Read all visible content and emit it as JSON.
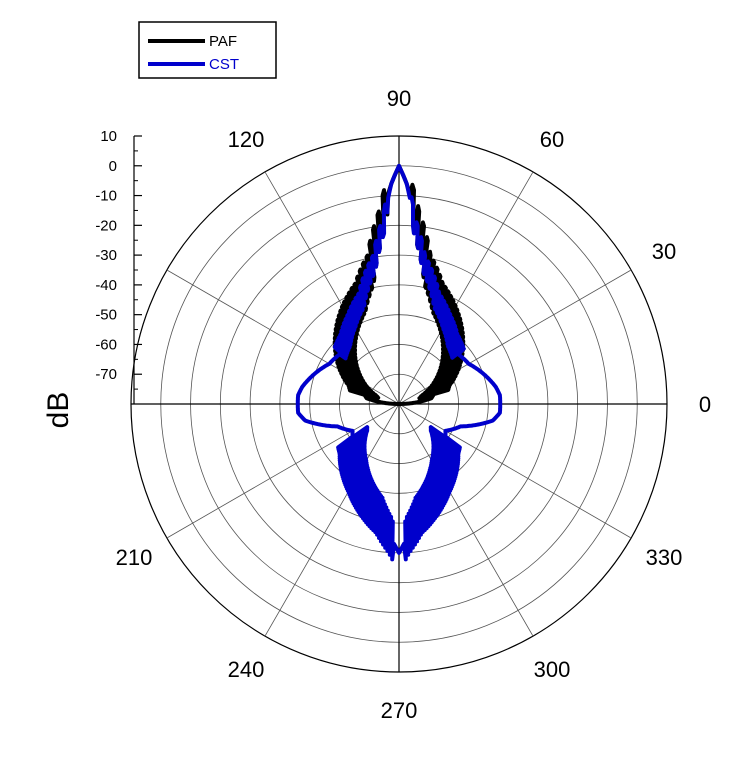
{
  "chart_data": {
    "type": "polar",
    "title": "",
    "radial_label": "dB",
    "radial_range": [
      -80,
      10
    ],
    "radial_ticks": [
      "10",
      "0",
      "-10",
      "-20",
      "-30",
      "-40",
      "-50",
      "-60",
      "-70"
    ],
    "angle_labels": [
      "0",
      "30",
      "60",
      "90",
      "120",
      "210",
      "240",
      "270",
      "300",
      "330"
    ],
    "legend": {
      "placement": "top-left"
    },
    "series": [
      {
        "name": "PAF",
        "color": "#000000",
        "points": [
          {
            "angle": 0,
            "db": -80
          },
          {
            "angle": 10,
            "db": -69
          },
          {
            "angle": 20,
            "db": -67
          },
          {
            "angle": 30,
            "db": -62
          },
          {
            "angle": 40,
            "db": -57
          },
          {
            "angle": 50,
            "db": -52
          },
          {
            "angle": 60,
            "db": -47
          },
          {
            "angle": 70,
            "db": -42
          },
          {
            "angle": 78,
            "db": -34
          },
          {
            "angle": 84,
            "db": -20
          },
          {
            "angle": 88,
            "db": -6
          },
          {
            "angle": 90,
            "db": 0
          },
          {
            "angle": 92,
            "db": -6
          },
          {
            "angle": 96,
            "db": -20
          },
          {
            "angle": 102,
            "db": -34
          },
          {
            "angle": 110,
            "db": -42
          },
          {
            "angle": 120,
            "db": -47
          },
          {
            "angle": 130,
            "db": -52
          },
          {
            "angle": 140,
            "db": -57
          },
          {
            "angle": 150,
            "db": -62
          },
          {
            "angle": 160,
            "db": -67
          },
          {
            "angle": 170,
            "db": -69
          },
          {
            "angle": 180,
            "db": -80
          }
        ]
      },
      {
        "name": "CST",
        "color": "#0000cc",
        "points": [
          {
            "angle": 0,
            "db": -46
          },
          {
            "angle": 5,
            "db": -46
          },
          {
            "angle": 10,
            "db": -47
          },
          {
            "angle": 20,
            "db": -50
          },
          {
            "angle": 30,
            "db": -53
          },
          {
            "angle": 40,
            "db": -54
          },
          {
            "angle": 50,
            "db": -52
          },
          {
            "angle": 60,
            "db": -48
          },
          {
            "angle": 70,
            "db": -43
          },
          {
            "angle": 80,
            "db": -32
          },
          {
            "angle": 85,
            "db": -20
          },
          {
            "angle": 88,
            "db": -6
          },
          {
            "angle": 90,
            "db": 0
          },
          {
            "angle": 92,
            "db": -6
          },
          {
            "angle": 95,
            "db": -20
          },
          {
            "angle": 100,
            "db": -32
          },
          {
            "angle": 110,
            "db": -43
          },
          {
            "angle": 120,
            "db": -48
          },
          {
            "angle": 130,
            "db": -52
          },
          {
            "angle": 140,
            "db": -54
          },
          {
            "angle": 150,
            "db": -53
          },
          {
            "angle": 160,
            "db": -50
          },
          {
            "angle": 170,
            "db": -47
          },
          {
            "angle": 175,
            "db": -46
          },
          {
            "angle": 180,
            "db": -46
          },
          {
            "angle": 185,
            "db": -46
          },
          {
            "angle": 190,
            "db": -48
          },
          {
            "angle": 200,
            "db": -58
          },
          {
            "angle": 210,
            "db": -62
          },
          {
            "angle": 220,
            "db": -60
          },
          {
            "angle": 230,
            "db": -56
          },
          {
            "angle": 240,
            "db": -52
          },
          {
            "angle": 250,
            "db": -47
          },
          {
            "angle": 260,
            "db": -42
          },
          {
            "angle": 266,
            "db": -36
          },
          {
            "angle": 270,
            "db": -30
          },
          {
            "angle": 274,
            "db": -36
          },
          {
            "angle": 280,
            "db": -42
          },
          {
            "angle": 290,
            "db": -47
          },
          {
            "angle": 300,
            "db": -52
          },
          {
            "angle": 310,
            "db": -56
          },
          {
            "angle": 320,
            "db": -60
          },
          {
            "angle": 330,
            "db": -62
          },
          {
            "angle": 340,
            "db": -58
          },
          {
            "angle": 350,
            "db": -48
          },
          {
            "angle": 355,
            "db": -46
          }
        ]
      }
    ]
  }
}
